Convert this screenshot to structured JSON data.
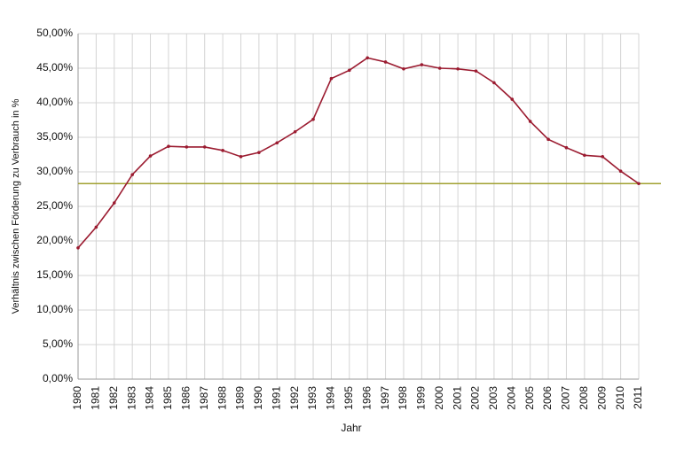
{
  "chart_data": {
    "type": "line",
    "x_label": "Jahr",
    "y_label": "Verhältnis zwischen Förderung zu Verbrauch in %",
    "x": [
      1980,
      1981,
      1982,
      1983,
      1984,
      1985,
      1986,
      1987,
      1988,
      1989,
      1990,
      1991,
      1992,
      1993,
      1994,
      1995,
      1996,
      1997,
      1998,
      1999,
      2000,
      2001,
      2002,
      2003,
      2004,
      2005,
      2006,
      2007,
      2008,
      2009,
      2010,
      2011
    ],
    "xlim": [
      1980,
      2011
    ],
    "xticks": [
      1980,
      1981,
      1982,
      1983,
      1984,
      1985,
      1986,
      1987,
      1988,
      1989,
      1990,
      1991,
      1992,
      1993,
      1994,
      1995,
      1996,
      1997,
      1998,
      1999,
      2000,
      2001,
      2002,
      2003,
      2004,
      2005,
      2006,
      2007,
      2008,
      2009,
      2010,
      2011
    ],
    "series": [
      {
        "color": "#9b1b30",
        "values": [
          19.0,
          22.0,
          25.5,
          29.6,
          32.3,
          33.7,
          33.6,
          33.6,
          33.1,
          32.2,
          32.8,
          34.2,
          35.8,
          37.6,
          43.5,
          44.7,
          46.5,
          45.9,
          44.9,
          45.5,
          45.0,
          44.9,
          44.6,
          42.9,
          40.5,
          37.3,
          34.7,
          33.5,
          32.4,
          32.2,
          30.1,
          28.3
        ]
      }
    ],
    "reference_line": {
      "value": 28.3,
      "color": "#a0a030"
    },
    "ylim": [
      0,
      50
    ],
    "yticks": [
      {
        "value": 0,
        "label": "0,00%"
      },
      {
        "value": 5,
        "label": "5,00%"
      },
      {
        "value": 10,
        "label": "10,00%"
      },
      {
        "value": 15,
        "label": "15,00%"
      },
      {
        "value": 20,
        "label": "20,00%"
      },
      {
        "value": 25,
        "label": "25,00%"
      },
      {
        "value": 30,
        "label": "30,00%"
      },
      {
        "value": 35,
        "label": "35,00%"
      },
      {
        "value": 40,
        "label": "40,00%"
      },
      {
        "value": 45,
        "label": "45,00%"
      },
      {
        "value": 50,
        "label": "50,00%"
      }
    ],
    "grid": true
  }
}
